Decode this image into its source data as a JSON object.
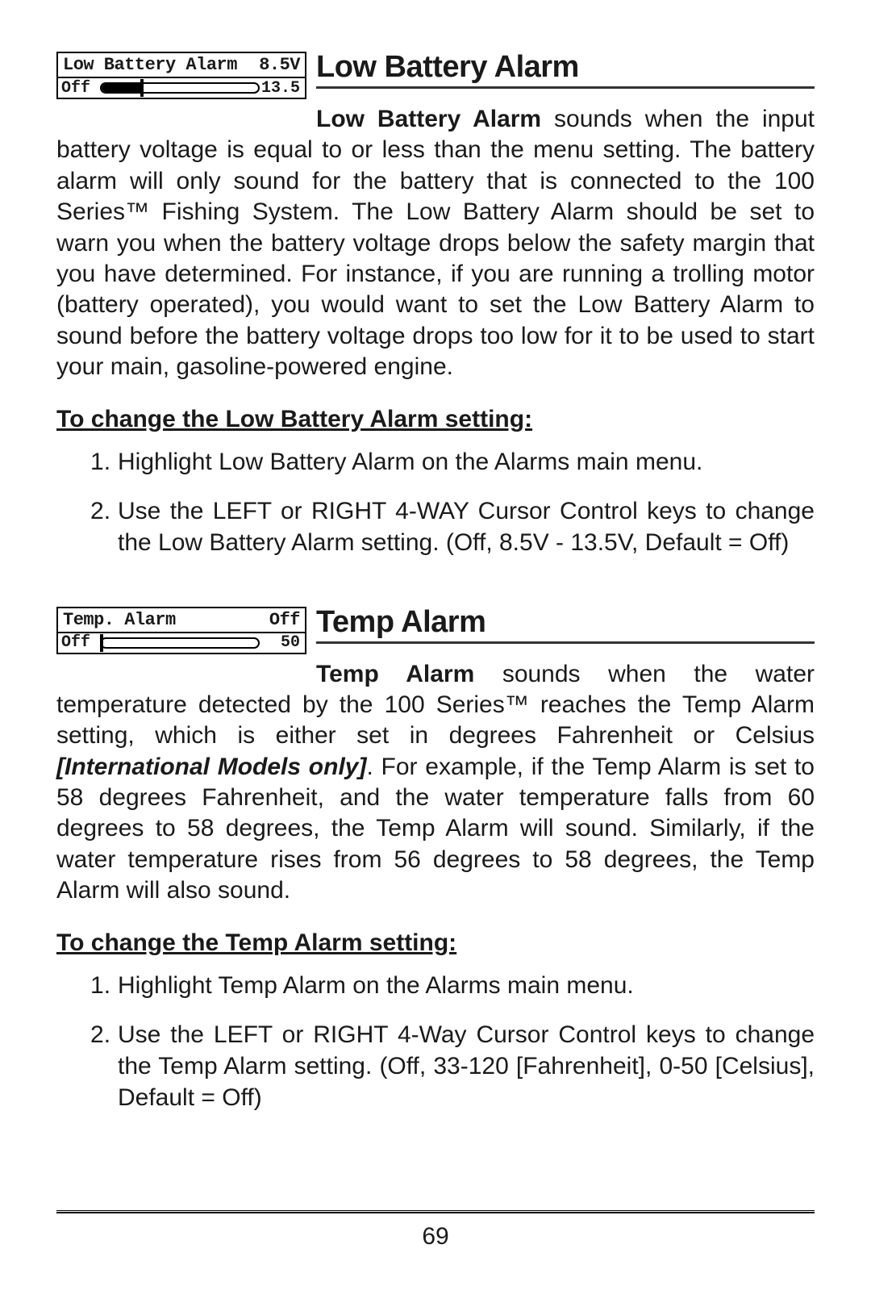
{
  "sections": {
    "low_battery": {
      "menu": {
        "label": "Low Battery Alarm",
        "value": "8.5V",
        "left_label": "Off",
        "right_label": "13.5",
        "fill_pct": 26,
        "thumb_pct": 26
      },
      "title": "Low Battery Alarm",
      "lead": "Low Battery Alarm",
      "para_after_lead": " sounds when the input battery ",
      "para_rest": "voltage is equal to or less than the menu setting. The battery alarm will only sound for the battery that is connected to the 100 Series™ Fishing System. The Low Battery Alarm should be set to warn you when the battery voltage drops below the safety margin that you have determined. For instance, if you are running a trolling motor (battery operated), you would want to set the Low Battery Alarm to sound before the battery voltage drops too low for it to be used to start your main, gasoline-powered engine.",
      "instr_heading": "To change the Low Battery Alarm setting:",
      "steps": [
        "Highlight Low Battery Alarm on the Alarms main menu.",
        "Use the LEFT or RIGHT 4-WAY Cursor Control keys to change the Low Battery Alarm setting. (Off, 8.5V - 13.5V,  Default = Off)"
      ]
    },
    "temp": {
      "menu": {
        "label": "Temp. Alarm",
        "value": "Off",
        "left_label": "Off",
        "right_label": "50",
        "fill_pct": 0,
        "thumb_pct": 0
      },
      "title": "Temp Alarm",
      "lead": "Temp Alarm",
      "para_after_lead": " sounds when the water temperature ",
      "para_rest_1": "detected by the 100 Series™ reaches the Temp Alarm setting, which is either set in degrees Fahrenheit or Celsius ",
      "intl_note": "[International Models only]",
      "para_rest_2": ". For example, if the Temp Alarm is set to 58 degrees Fahrenheit, and the water temperature falls from 60 degrees to 58 degrees, the Temp Alarm will sound. Similarly, if the water temperature rises from 56 degrees to 58 degrees, the Temp Alarm will also sound.",
      "instr_heading": "To change the Temp Alarm setting:",
      "steps": [
        "Highlight Temp Alarm on the Alarms main menu.",
        "Use the LEFT or RIGHT 4-Way Cursor Control keys to change the Temp Alarm setting. (Off, 33-120 [Fahrenheit], 0-50 [Celsius], Default = Off)"
      ]
    }
  },
  "page_number": "69",
  "colors": {
    "text": "#1a1a1a",
    "rule": "#000000",
    "background": "#ffffff"
  },
  "fontsizes": {
    "section_title": 38,
    "body": 30,
    "menu_label": 22,
    "menu_small": 20,
    "page_num": 30
  }
}
